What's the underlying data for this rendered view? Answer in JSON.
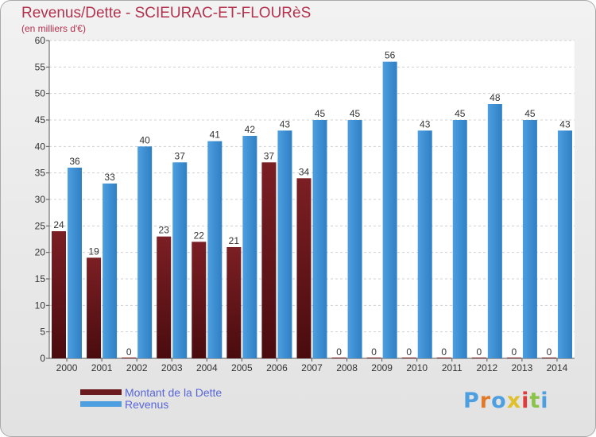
{
  "title": "Revenus/Dette - SCIEURAC-ET-FLOURèS",
  "subtitle": "(en milliers d'€)",
  "logo": "Proxiti",
  "colors": {
    "debt": "#7b1f24",
    "debt_dark": "#4a0c0f",
    "revenue": "#4d9fe0",
    "revenue_dark": "#2f7fc4",
    "title": "#b4324e",
    "legend_text": "#5866d8",
    "label": "#333333",
    "grid": "#d0d0d0"
  },
  "legend": [
    {
      "label": "Montant de la Dette",
      "color": "#6b1a1e"
    },
    {
      "label": "Revenus",
      "color": "#4d9fe0"
    }
  ],
  "chart_data": {
    "type": "bar",
    "categories": [
      "2000",
      "2001",
      "2002",
      "2003",
      "2004",
      "2005",
      "2006",
      "2007",
      "2008",
      "2009",
      "2010",
      "2011",
      "2012",
      "2013",
      "2014"
    ],
    "series": [
      {
        "name": "Montant de la Dette",
        "values": [
          24,
          19,
          0,
          23,
          22,
          21,
          37,
          34,
          0,
          0,
          0,
          0,
          0,
          0,
          0
        ]
      },
      {
        "name": "Revenus",
        "values": [
          36,
          33,
          40,
          37,
          41,
          42,
          43,
          45,
          45,
          56,
          43,
          45,
          48,
          45,
          43
        ]
      }
    ],
    "ylim": [
      0,
      60
    ],
    "yticks": [
      0,
      5,
      10,
      15,
      20,
      25,
      30,
      35,
      40,
      45,
      50,
      55,
      60
    ],
    "grid": true,
    "legend_position": "bottom-left"
  }
}
